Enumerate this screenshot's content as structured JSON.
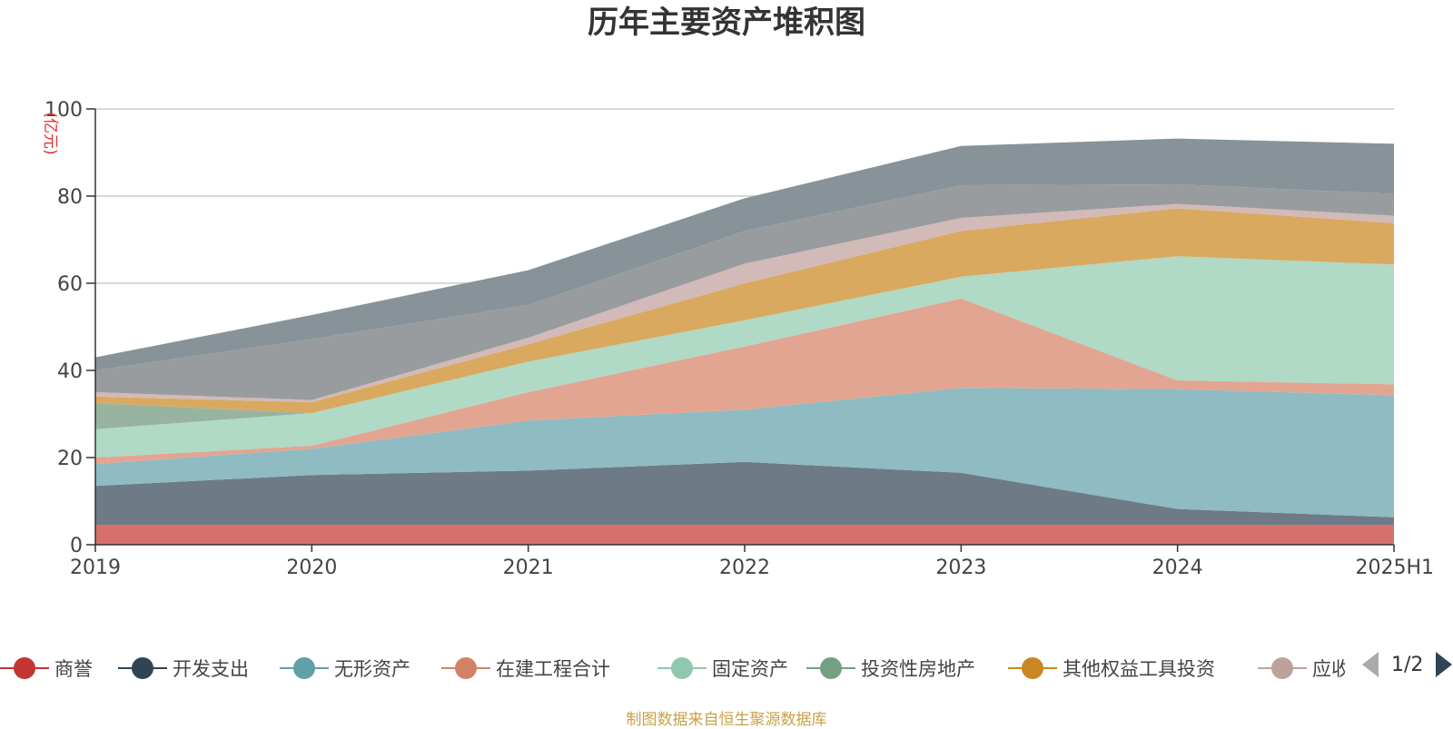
{
  "chart_data": {
    "type": "area",
    "stacked": true,
    "title": "历年主要资产堆积图",
    "ylabel": "(亿元)",
    "xlabel": "",
    "categories": [
      "2019",
      "2020",
      "2021",
      "2022",
      "2023",
      "2024",
      "2025H1"
    ],
    "ylim": [
      0,
      100
    ],
    "yticks": [
      0,
      20,
      40,
      60,
      80,
      100
    ],
    "grid": true,
    "legend_position": "bottom",
    "series": [
      {
        "name": "商誉",
        "color": "#d6706e",
        "values": [
          4.5,
          4.5,
          4.5,
          4.5,
          4.5,
          4.5,
          4.5
        ]
      },
      {
        "name": "开发支出",
        "color": "#6e7b86",
        "values": [
          9,
          11.5,
          12.5,
          14.5,
          12,
          3.7,
          1.8
        ]
      },
      {
        "name": "无形资产",
        "color": "#8fbbc2",
        "values": [
          5,
          6,
          11.5,
          12,
          19.5,
          27.5,
          28
        ]
      },
      {
        "name": "在建工程合计",
        "color": "#e2a592",
        "values": [
          1.5,
          0.7,
          6.5,
          14.5,
          20.5,
          2,
          2.5
        ]
      },
      {
        "name": "固定资产",
        "color": "#b0d9c6",
        "values": [
          6.5,
          7.5,
          7,
          6,
          5,
          28.5,
          27.5
        ]
      },
      {
        "name": "投资性房地产",
        "color": "#98b4a0",
        "values": [
          6,
          0,
          0,
          0,
          0,
          0,
          0
        ]
      },
      {
        "name": "其他权益工具投资",
        "color": "#d9a95f",
        "values": [
          1.5,
          2.5,
          4,
          8.5,
          10.5,
          11,
          9.5
        ]
      },
      {
        "name": "应收",
        "color": "#d1bab8",
        "values": [
          1,
          0.5,
          1.5,
          4.5,
          3,
          1,
          1.7
        ]
      },
      {
        "color": "#989c9f",
        "values": [
          5,
          14,
          7.5,
          7.5,
          7.5,
          4.5,
          5
        ]
      },
      {
        "color": "#879399",
        "values": [
          3,
          5.5,
          8,
          7.5,
          9,
          10.5,
          11.5
        ]
      }
    ]
  },
  "legend": {
    "items": [
      {
        "label": "商誉",
        "color": "#c23531"
      },
      {
        "label": "开发支出",
        "color": "#2f4554"
      },
      {
        "label": "无形资产",
        "color": "#61a0a8"
      },
      {
        "label": "在建工程合计",
        "color": "#d48265"
      },
      {
        "label": "固定资产",
        "color": "#91c7ae"
      },
      {
        "label": "投资性房地产",
        "color": "#749f83"
      },
      {
        "label": "其他权益工具投资",
        "color": "#ca8622"
      },
      {
        "label": "应收",
        "color": "#bda29a"
      }
    ],
    "page_text": "1/2"
  },
  "footer": "制图数据来自恒生聚源数据库"
}
